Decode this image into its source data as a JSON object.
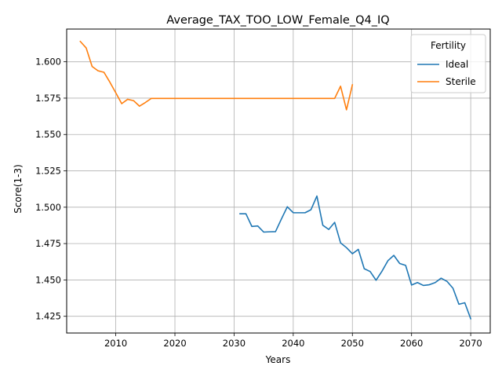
{
  "chart_data": {
    "type": "line",
    "title": "Average_TAX_TOO_LOW_Female_Q4_IQ",
    "xlabel": "Years",
    "ylabel": "Score(1-3)",
    "xlim": [
      2001.7,
      2073.3
    ],
    "ylim": [
      1.4135,
      1.6225
    ],
    "xticks": [
      2010,
      2020,
      2030,
      2040,
      2050,
      2060,
      2070
    ],
    "yticks": [
      1.425,
      1.45,
      1.475,
      1.5,
      1.525,
      1.55,
      1.575,
      1.6
    ],
    "ytick_labels": [
      "1.425",
      "1.450",
      "1.475",
      "1.500",
      "1.525",
      "1.550",
      "1.575",
      "1.600"
    ],
    "grid": true,
    "legend": {
      "title": "Fertility",
      "position": "top-right"
    },
    "series": [
      {
        "name": "Ideal",
        "color": "#1f77b4",
        "x": [
          2031,
          2032,
          2033,
          2034,
          2035,
          2036,
          2037,
          2038,
          2039,
          2040,
          2041,
          2042,
          2043,
          2044,
          2045,
          2046,
          2047,
          2048,
          2049,
          2050,
          2051,
          2052,
          2053,
          2054,
          2055,
          2056,
          2057,
          2058,
          2059,
          2060,
          2061,
          2062,
          2063,
          2064,
          2065,
          2066,
          2067,
          2068,
          2069,
          2070
        ],
        "y": [
          1.4955,
          1.4955,
          1.4868,
          1.4871,
          1.4829,
          1.4831,
          1.4832,
          1.4919,
          1.5003,
          1.4962,
          1.4962,
          1.4962,
          1.4983,
          1.5077,
          1.4876,
          1.4847,
          1.4896,
          1.4755,
          1.4722,
          1.468,
          1.471,
          1.4577,
          1.4558,
          1.4498,
          1.456,
          1.4632,
          1.4669,
          1.4613,
          1.46,
          1.4465,
          1.4482,
          1.4462,
          1.4467,
          1.4482,
          1.4512,
          1.449,
          1.4443,
          1.4333,
          1.4343,
          1.4233
        ]
      },
      {
        "name": "Sterile",
        "color": "#ff7f0e",
        "x": [
          2004,
          2005,
          2006,
          2007,
          2008,
          2009,
          2010,
          2011,
          2012,
          2013,
          2014,
          2015,
          2016,
          2017,
          2018,
          2019,
          2020,
          2025,
          2030,
          2035,
          2040,
          2045,
          2046,
          2047,
          2048,
          2049,
          2050
        ],
        "y": [
          1.614,
          1.6095,
          1.5968,
          1.5938,
          1.5928,
          1.586,
          1.5787,
          1.5712,
          1.5742,
          1.5733,
          1.5695,
          1.572,
          1.5748,
          1.5748,
          1.5748,
          1.5748,
          1.5748,
          1.5748,
          1.5748,
          1.5748,
          1.5748,
          1.5748,
          1.5748,
          1.5748,
          1.5832,
          1.567,
          1.5842
        ]
      }
    ]
  }
}
